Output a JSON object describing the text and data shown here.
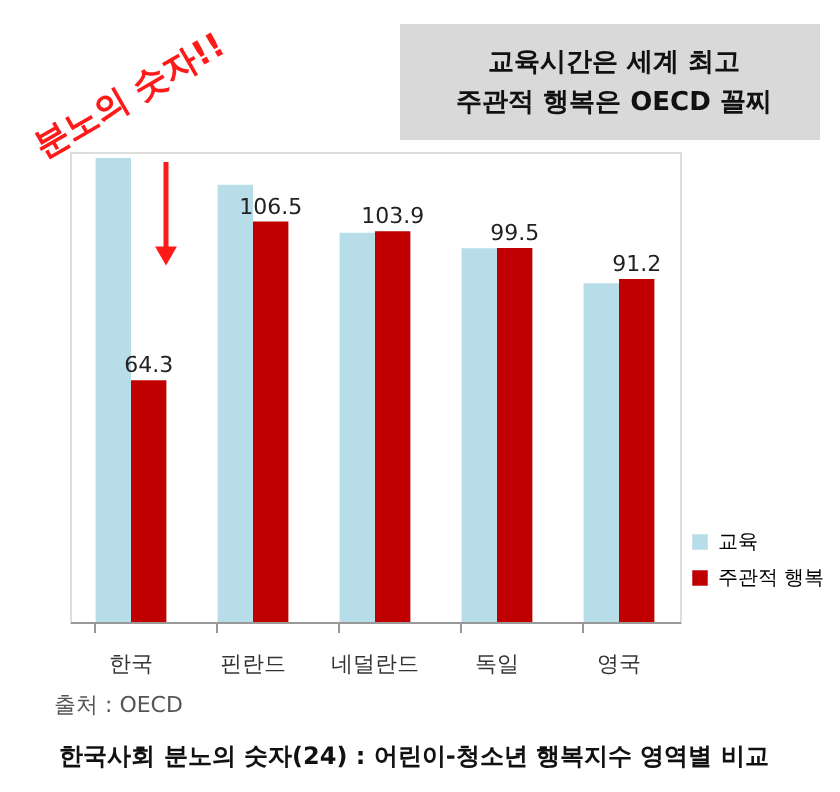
{
  "chart_data": {
    "type": "bar",
    "title": "한국사회 분노의 숫자(24) : 어린이-청소년 행복지수 영역별 비교",
    "categories": [
      "한국",
      "핀란드",
      "네덜란드",
      "독일",
      "영국"
    ],
    "series": [
      {
        "name": "교육",
        "color": "#b7dde8",
        "values": [
          123.4,
          116.3,
          103.5,
          99.4,
          90.1
        ]
      },
      {
        "name": "주관적 행복",
        "color": "#c00000",
        "values": [
          64.3,
          106.5,
          103.9,
          99.5,
          91.2
        ],
        "value_labels": [
          "64.3",
          "106.5",
          "103.9",
          "99.5",
          "91.2"
        ]
      }
    ],
    "ylim": [
      0,
      125
    ],
    "grid": false,
    "legend": "bottom right",
    "tick_labels": "x",
    "annotations": [
      "교육시간은 세계 최고\n주관적 행복은 OECD 꼴찌",
      "분노의 숫자!!",
      "출처 : OECD"
    ]
  }
}
